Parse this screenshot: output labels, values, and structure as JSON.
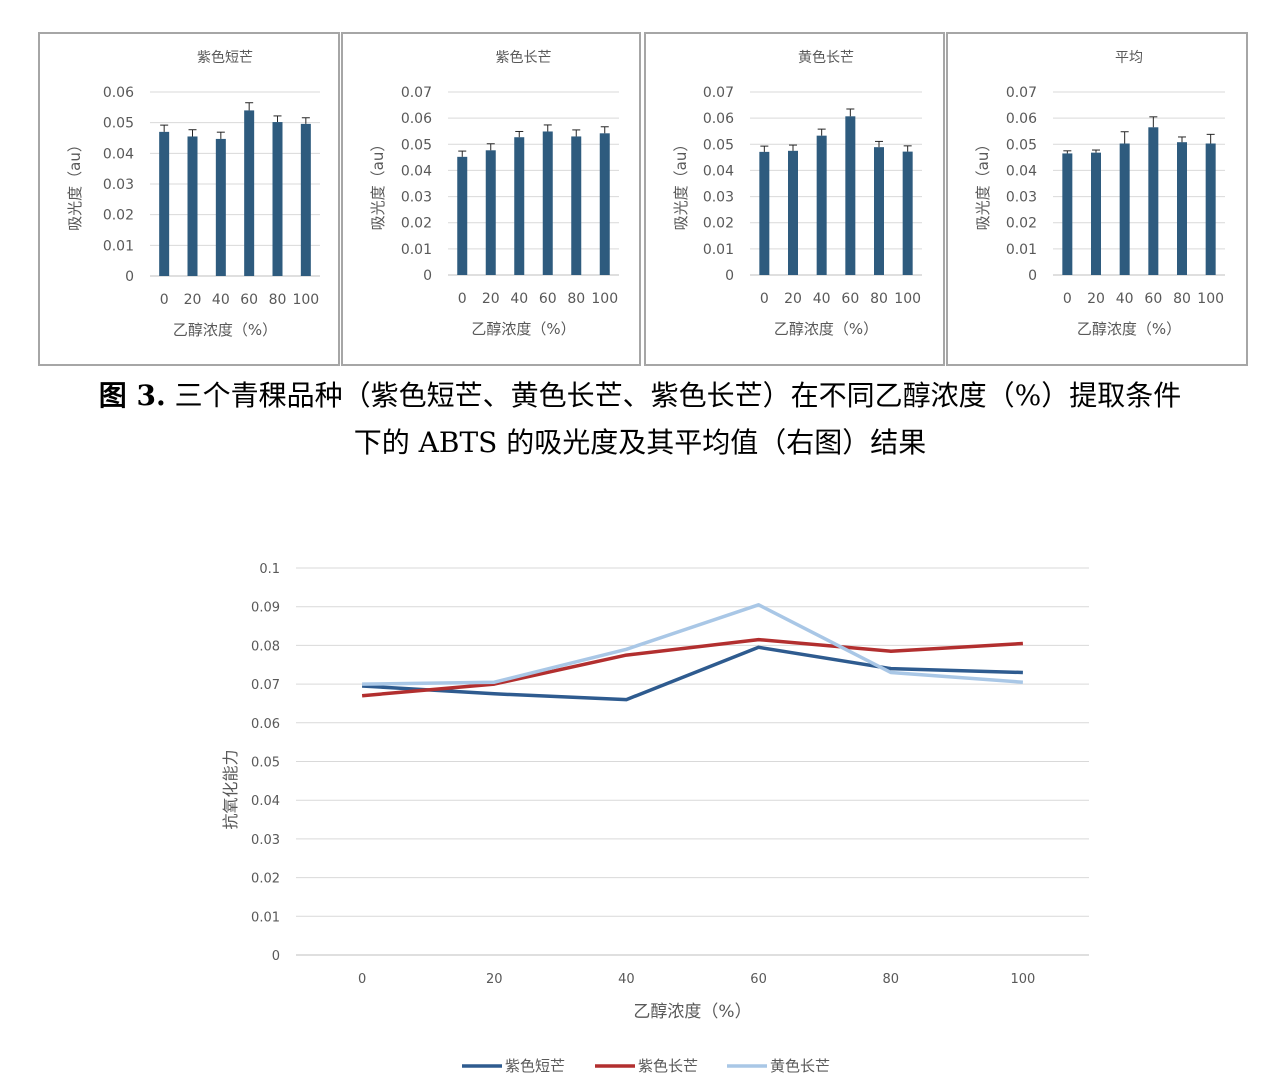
{
  "chart_data": [
    {
      "type": "bar",
      "title": "紫色短芒",
      "xlabel": "乙醇浓度（%）",
      "ylabel": "吸光度（au）",
      "categories": [
        "0",
        "20",
        "40",
        "60",
        "80",
        "100"
      ],
      "values": [
        0.047,
        0.0455,
        0.0447,
        0.054,
        0.0502,
        0.0496
      ],
      "errors": [
        0.0022,
        0.0022,
        0.0022,
        0.0025,
        0.002,
        0.002
      ],
      "ylim": [
        0,
        0.06
      ],
      "yticks": [
        "0",
        "0.01",
        "0.02",
        "0.03",
        "0.04",
        "0.05",
        "0.06"
      ],
      "grid": true,
      "color": "#2e5b7e"
    },
    {
      "type": "bar",
      "title": "紫色长芒",
      "xlabel": "乙醇浓度（%）",
      "ylabel": "吸光度（au）",
      "categories": [
        "0",
        "20",
        "40",
        "60",
        "80",
        "100"
      ],
      "values": [
        0.0452,
        0.0477,
        0.0527,
        0.0549,
        0.053,
        0.0542
      ],
      "errors": [
        0.0022,
        0.0025,
        0.0022,
        0.0025,
        0.0025,
        0.0025
      ],
      "ylim": [
        0,
        0.07
      ],
      "yticks": [
        "0",
        "0.01",
        "0.02",
        "0.03",
        "0.04",
        "0.05",
        "0.06",
        "0.07"
      ],
      "grid": true,
      "color": "#2e5b7e"
    },
    {
      "type": "bar",
      "title": "黄色长芒",
      "xlabel": "乙醇浓度（%）",
      "ylabel": "吸光度（au）",
      "categories": [
        "0",
        "20",
        "40",
        "60",
        "80",
        "100"
      ],
      "values": [
        0.0471,
        0.0475,
        0.0533,
        0.0607,
        0.0489,
        0.0472
      ],
      "errors": [
        0.0022,
        0.0022,
        0.0025,
        0.0028,
        0.0022,
        0.0022
      ],
      "ylim": [
        0,
        0.07
      ],
      "yticks": [
        "0",
        "0.01",
        "0.02",
        "0.03",
        "0.04",
        "0.05",
        "0.06",
        "0.07"
      ],
      "grid": true,
      "color": "#2e5b7e"
    },
    {
      "type": "bar",
      "title": "平均",
      "xlabel": "乙醇浓度（%）",
      "ylabel": "吸光度（au）",
      "categories": [
        "0",
        "20",
        "40",
        "60",
        "80",
        "100"
      ],
      "values": [
        0.0465,
        0.0468,
        0.0503,
        0.0565,
        0.0508,
        0.0503
      ],
      "errors": [
        0.001,
        0.001,
        0.0045,
        0.004,
        0.002,
        0.0035
      ],
      "ylim": [
        0,
        0.07
      ],
      "yticks": [
        "0",
        "0.01",
        "0.02",
        "0.03",
        "0.04",
        "0.05",
        "0.06",
        "0.07"
      ],
      "grid": true,
      "color": "#2e5b7e"
    },
    {
      "type": "line",
      "title": "",
      "xlabel": "乙醇浓度（%）",
      "ylabel": "抗氧化能力",
      "x": [
        "0",
        "20",
        "40",
        "60",
        "80",
        "100"
      ],
      "ylim": [
        0,
        0.1
      ],
      "yticks": [
        "0",
        "0.01",
        "0.02",
        "0.03",
        "0.04",
        "0.05",
        "0.06",
        "0.07",
        "0.08",
        "0.09",
        "0.1"
      ],
      "grid": true,
      "legend": "bottom",
      "series": [
        {
          "name": "紫色短芒",
          "color": "#2e5b8f",
          "values": [
            0.0695,
            0.0675,
            0.066,
            0.0795,
            0.074,
            0.073
          ]
        },
        {
          "name": "紫色长芒",
          "color": "#b22f2f",
          "values": [
            0.067,
            0.07,
            0.0775,
            0.0815,
            0.0785,
            0.0805
          ]
        },
        {
          "name": "黄色长芒",
          "color": "#a9c7e6",
          "values": [
            0.07,
            0.0705,
            0.079,
            0.0905,
            0.073,
            0.0705
          ]
        }
      ]
    }
  ],
  "caption": {
    "label": "图 3.",
    "line1": " 三个青稞品种（紫色短芒、黄色长芒、紫色长芒）在不同乙醇浓度（%）提取条件",
    "line2": "下的 ABTS 的吸光度及其平均值（右图）结果"
  }
}
